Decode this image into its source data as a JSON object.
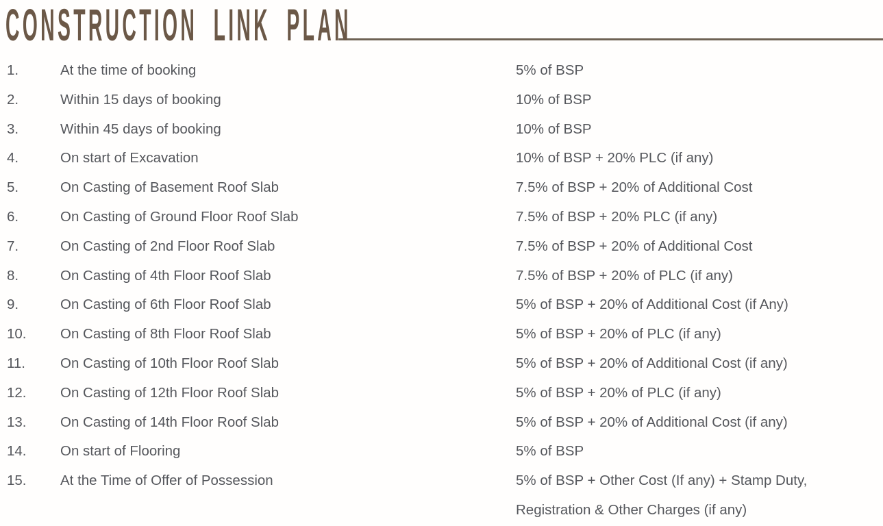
{
  "page": {
    "title": "CONSTRUCTION LINK PLAN",
    "colors": {
      "title": "#6b5847",
      "rule": "#6e6254",
      "body_text": "#55575c",
      "background": "#ffffff"
    }
  },
  "plan": {
    "rows": [
      {
        "num": "1.",
        "stage": "At the time of booking",
        "payment": "5% of BSP"
      },
      {
        "num": "2.",
        "stage": "Within 15 days of booking",
        "payment": "10% of BSP"
      },
      {
        "num": "3.",
        "stage": "Within 45 days of booking",
        "payment": "10% of BSP"
      },
      {
        "num": "4.",
        "stage": "On start of Excavation",
        "payment": "10% of BSP + 20% PLC (if any)"
      },
      {
        "num": "5.",
        "stage": "On Casting of Basement Roof Slab",
        "payment": "7.5% of BSP + 20% of Additional Cost"
      },
      {
        "num": "6.",
        "stage": "On Casting of Ground Floor Roof Slab",
        "payment": "7.5% of BSP + 20% PLC (if any)"
      },
      {
        "num": "7.",
        "stage": "On Casting of 2nd Floor Roof Slab",
        "payment": "7.5% of BSP + 20% of Additional Cost"
      },
      {
        "num": "8.",
        "stage": "On Casting of 4th Floor Roof Slab",
        "payment": "7.5% of BSP + 20% of PLC (if any)"
      },
      {
        "num": "9.",
        "stage": "On Casting of 6th Floor Roof Slab",
        "payment": "5% of BSP + 20% of Additional Cost (if Any)"
      },
      {
        "num": "10.",
        "stage": "On Casting of 8th Floor Roof Slab",
        "payment": "5% of BSP + 20% of PLC (if any)"
      },
      {
        "num": "11.",
        "stage": "On Casting of 10th Floor Roof Slab",
        "payment": "5% of BSP + 20% of Additional Cost (if any)"
      },
      {
        "num": "12.",
        "stage": "On Casting of 12th Floor Roof Slab",
        "payment": "5% of BSP + 20% of PLC (if any)"
      },
      {
        "num": "13.",
        "stage": "On Casting of 14th Floor Roof Slab",
        "payment": "5% of BSP + 20% of Additional Cost (if any)"
      },
      {
        "num": "14.",
        "stage": "On start of Flooring",
        "payment": "5% of BSP"
      },
      {
        "num": "15.",
        "stage": "At the Time of Offer of Possession",
        "payment": "5% of BSP + Other Cost (If any) + Stamp Duty,\nRegistration & Other Charges (if any)"
      }
    ]
  }
}
